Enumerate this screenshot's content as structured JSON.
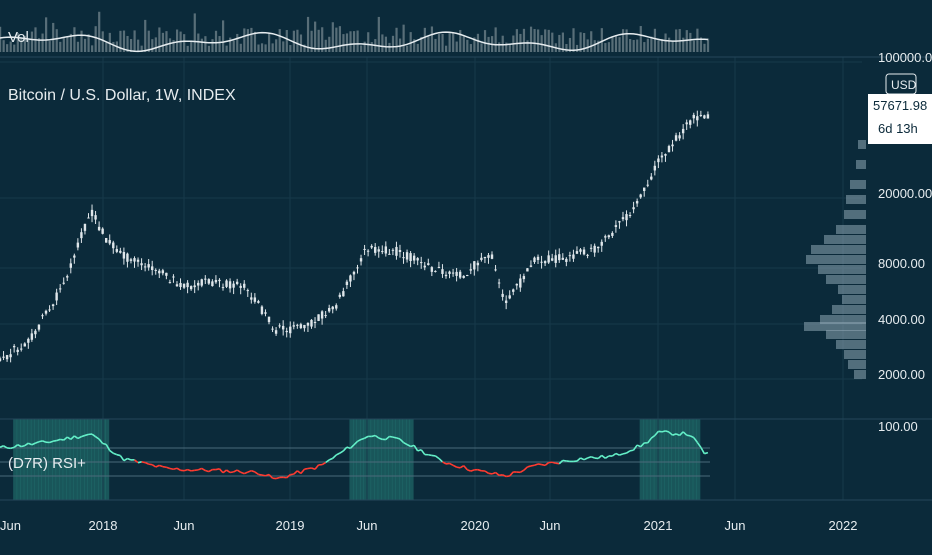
{
  "colors": {
    "background": "#0b2a3a",
    "grid": "#17394a",
    "divider": "#24475a",
    "candle": "#dfe6ea",
    "rsi_bull": "#64f0c8",
    "rsi_bear": "#ff3b30",
    "rsi_band_bull": "#2b8c82",
    "volume_bar": "#6c7f88",
    "volume_ma": "#e6ecef",
    "profile": "#8ea6b3",
    "text": "#e6ecef",
    "label_bg": "#ffffff",
    "label_text": "#0b2a3a"
  },
  "volume_panel": {
    "label": "Vol"
  },
  "price_panel": {
    "title": "Bitcoin / U.S. Dollar, 1W, INDEX",
    "currency_badge": "USD",
    "price_label": "57671.98",
    "countdown": "6d 13h",
    "price_axis_labels": [
      "100000.00",
      "20000.00",
      "8000.00",
      "4000.00",
      "2000.00"
    ]
  },
  "rsi_panel": {
    "label": "(D7R) RSI+",
    "axis_labels": [
      "100.00"
    ]
  },
  "time_axis": {
    "labels": [
      "Jun",
      "2018",
      "Jun",
      "2019",
      "Jun",
      "2020",
      "Jun",
      "2021",
      "Jun",
      "2022"
    ]
  },
  "chart_data": {
    "type": "line",
    "title": "Bitcoin / U.S. Dollar, 1W, INDEX",
    "y_scale": "log",
    "ylim": [
      1800,
      100000
    ],
    "y_ticks": [
      100000,
      20000,
      8000,
      4000,
      2000
    ],
    "x_ticks": [
      "Jun",
      "2018",
      "Jun",
      "2019",
      "Jun",
      "2020",
      "Jun",
      "2021",
      "Jun",
      "2022"
    ],
    "series": [
      {
        "x": [
          "2017-06",
          "2017-08",
          "2017-10",
          "2017-12",
          "2018-01",
          "2018-02",
          "2018-04",
          "2018-06",
          "2018-08",
          "2018-10",
          "2018-12",
          "2019-02",
          "2019-04",
          "2019-06",
          "2019-08",
          "2019-10",
          "2019-12",
          "2020-02",
          "2020-03",
          "2020-05",
          "2020-07",
          "2020-09",
          "2020-11",
          "2021-01",
          "2021-03",
          "2021-04"
        ],
        "values": [
          2400,
          3200,
          6000,
          17000,
          11500,
          9500,
          8000,
          6400,
          6700,
          6400,
          3600,
          3700,
          5000,
          10500,
          10000,
          8200,
          7200,
          9800,
          5000,
          9000,
          9200,
          10600,
          16000,
          32000,
          55000,
          57671.98
        ]
      }
    ],
    "rsi": {
      "ylim": [
        0,
        100
      ],
      "y_ticks": [
        100
      ],
      "x": [
        "2017-06",
        "2017-09",
        "2017-12",
        "2018-02",
        "2018-05",
        "2018-08",
        "2018-11",
        "2018-12",
        "2019-03",
        "2019-06",
        "2019-08",
        "2019-11",
        "2020-01",
        "2020-03",
        "2020-05",
        "2020-08",
        "2020-10",
        "2020-12",
        "2021-01",
        "2021-03",
        "2021-04"
      ],
      "values": [
        70,
        78,
        90,
        55,
        40,
        38,
        35,
        25,
        45,
        88,
        82,
        50,
        38,
        30,
        45,
        55,
        58,
        75,
        92,
        90,
        62
      ]
    }
  }
}
